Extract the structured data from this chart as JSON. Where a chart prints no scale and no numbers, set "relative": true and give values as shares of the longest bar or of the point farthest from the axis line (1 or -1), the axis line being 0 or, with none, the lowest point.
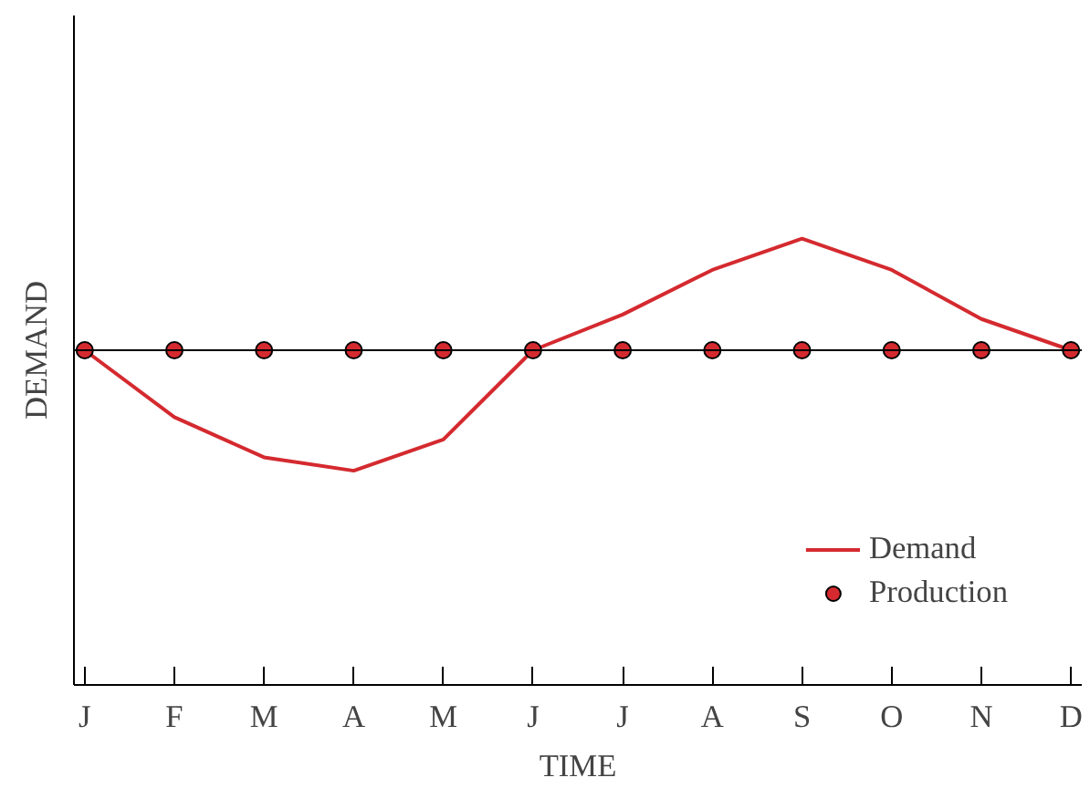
{
  "chart_data": {
    "type": "line",
    "relative": true,
    "xlabel": "TIME",
    "ylabel": "DEMAND",
    "categories": [
      "J",
      "F",
      "M",
      "A",
      "M",
      "J",
      "J",
      "A",
      "S",
      "O",
      "N",
      "D"
    ],
    "series": [
      {
        "name": "Demand",
        "color": "#d42a2f",
        "values": [
          0.75,
          0.6,
          0.51,
          0.48,
          0.55,
          0.75,
          0.83,
          0.93,
          1,
          0.93,
          0.82,
          0.75
        ]
      },
      {
        "name": "Production",
        "type": "scatter",
        "marker": "circle",
        "color": "#d42a2f",
        "values": [
          0.75,
          0.75,
          0.75,
          0.75,
          0.75,
          0.75,
          0.75,
          0.75,
          0.75,
          0.75,
          0.75,
          0.75
        ]
      }
    ],
    "ref_lines": [
      {
        "axis": "y",
        "value": 0.75,
        "color": "#000000"
      }
    ],
    "legend": "bottom right",
    "grid": false
  }
}
